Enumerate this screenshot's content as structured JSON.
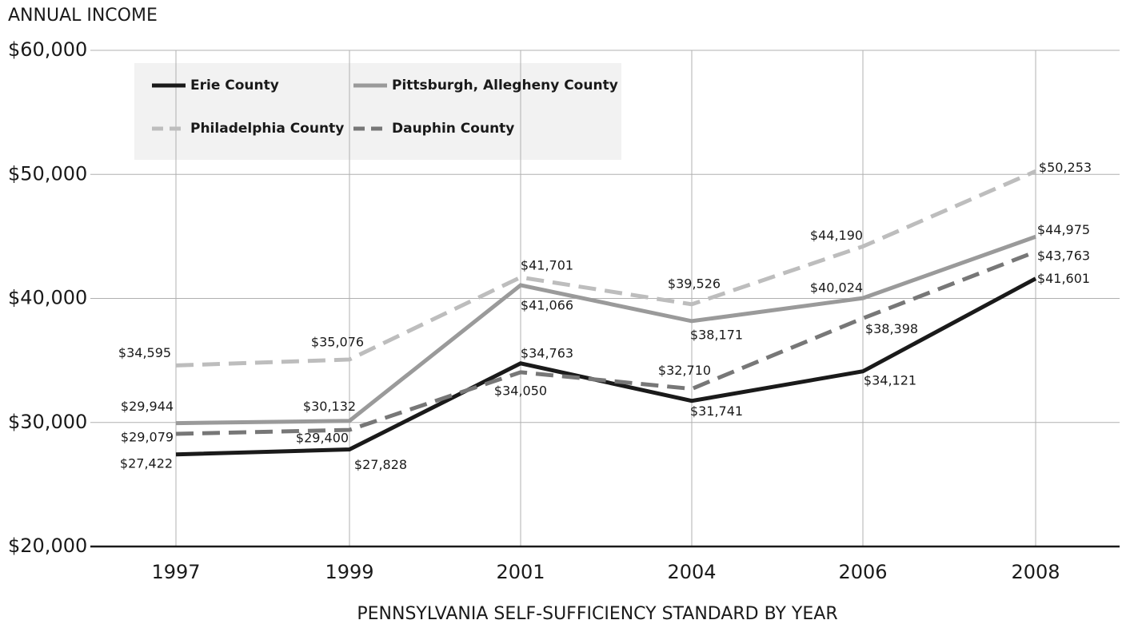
{
  "chart_data": {
    "type": "line",
    "title": "ANNUAL INCOME",
    "x_label": "PENNSYLVANIA SELF-SUFFICIENCY STANDARD BY YEAR",
    "categories": [
      "1997",
      "1999",
      "2001",
      "2004",
      "2006",
      "2008"
    ],
    "ylim": [
      20000,
      60000
    ],
    "yticks": [
      {
        "value": 20000,
        "label": "$20,000"
      },
      {
        "value": 30000,
        "label": "$30,000"
      },
      {
        "value": 40000,
        "label": "$40,000"
      },
      {
        "value": 50000,
        "label": "$50,000"
      },
      {
        "value": 60000,
        "label": "$60,000"
      }
    ],
    "grid": true,
    "legend": "upper left",
    "series": [
      {
        "name": "Erie County",
        "color": "#1a1a1a",
        "dashed": false,
        "values": [
          27422,
          27828,
          34763,
          31741,
          34121,
          41601
        ],
        "value_labels": [
          "$27,422",
          "$27,828",
          "$34,763",
          "$31,741",
          "$34,121",
          "$41,601"
        ]
      },
      {
        "name": "Pittsburgh, Allegheny County",
        "color": "#9a9a9a",
        "dashed": false,
        "values": [
          29944,
          30132,
          41066,
          38171,
          40024,
          44975
        ],
        "value_labels": [
          "$29,944",
          "$30,132",
          "$41,066",
          "$38,171",
          "$40,024",
          "$44,975"
        ]
      },
      {
        "name": "Philadelphia County",
        "color": "#bdbdbd",
        "dashed": true,
        "values": [
          34595,
          35076,
          41701,
          39526,
          44190,
          50253
        ],
        "value_labels": [
          "$34,595",
          "$35,076",
          "$41,701",
          "$39,526",
          "$44,190",
          "$50,253"
        ]
      },
      {
        "name": "Dauphin County",
        "color": "#777777",
        "dashed": true,
        "values": [
          29079,
          29400,
          34050,
          32710,
          38398,
          43763
        ],
        "value_labels": [
          "$29,079",
          "$29,400",
          "$34,050",
          "$32,710",
          "$38,398",
          "$43,763"
        ]
      }
    ]
  }
}
